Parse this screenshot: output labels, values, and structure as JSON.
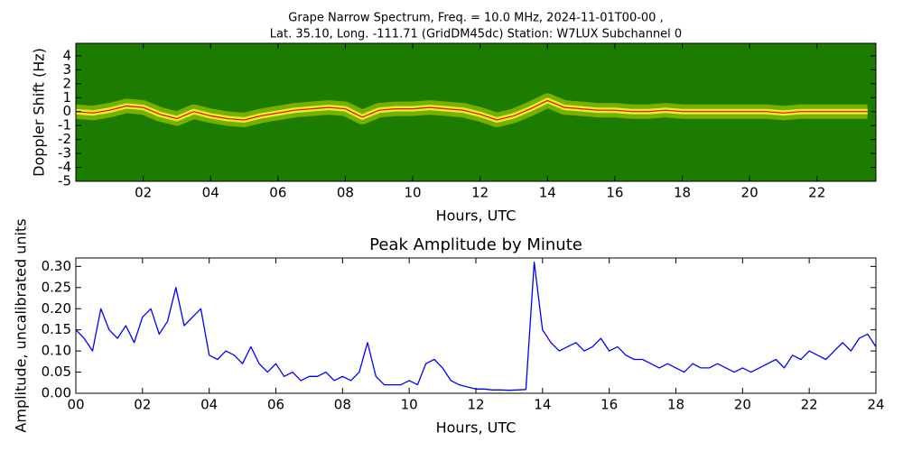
{
  "chart_data": [
    {
      "type": "spectrogram",
      "title": [
        "Grape Narrow Spectrum, Freq. = 10.0 MHz, 2024-11-01T00-00 ,",
        "Lat.  35.10, Long. -111.71 (GridDM45dc) Station: W7LUX Subchannel 0"
      ],
      "xlabel": "Hours, UTC",
      "ylabel": "Doppler Shift (Hz)",
      "xlim": [
        0,
        23.75
      ],
      "ylim": [
        -5,
        4.9
      ],
      "xticks": [
        {
          "value": 2,
          "label": "02"
        },
        {
          "value": 4,
          "label": "04"
        },
        {
          "value": 6,
          "label": "06"
        },
        {
          "value": 8,
          "label": "08"
        },
        10,
        12,
        14,
        16,
        18,
        20,
        22
      ],
      "yticks": [
        -5,
        -4,
        -3,
        -2,
        -1,
        0,
        1,
        2,
        3,
        4
      ],
      "background": "#1c7c00",
      "series": [
        {
          "color": "#ff0000",
          "x": [
            0,
            0.5,
            1,
            1.5,
            2,
            2.5,
            3,
            3.5,
            4,
            4.5,
            5,
            5.5,
            6,
            6.5,
            7,
            7.5,
            8,
            8.5,
            9,
            9.5,
            10,
            10.5,
            11,
            11.5,
            12,
            12.5,
            13,
            13.5,
            14,
            14.5,
            15,
            15.5,
            16,
            16.5,
            17,
            17.5,
            18,
            18.5,
            19,
            19.5,
            20,
            20.5,
            21,
            21.5,
            22,
            22.5,
            23,
            23.5
          ],
          "values": [
            0,
            -0.1,
            0.1,
            0.4,
            0.3,
            -0.2,
            -0.5,
            0,
            -0.3,
            -0.5,
            -0.6,
            -0.3,
            -0.1,
            0.1,
            0.2,
            0.3,
            0.2,
            -0.4,
            0.1,
            0.2,
            0.2,
            0.3,
            0.2,
            0.1,
            -0.2,
            -0.6,
            -0.3,
            0.2,
            0.8,
            0.3,
            0.2,
            0.1,
            0.1,
            0,
            0,
            0.1,
            0,
            0,
            0,
            0,
            0,
            0,
            -0.1,
            0,
            0,
            0,
            0,
            0
          ]
        }
      ]
    },
    {
      "type": "line",
      "title": "Peak Amplitude by Minute",
      "xlabel": "Hours, UTC",
      "ylabel": "Amplitude, uncalibrated units",
      "xlim": [
        0,
        24
      ],
      "ylim": [
        0,
        0.32
      ],
      "xticks": [
        {
          "value": 0,
          "label": "00"
        },
        {
          "value": 2,
          "label": "02"
        },
        {
          "value": 4,
          "label": "04"
        },
        {
          "value": 6,
          "label": "06"
        },
        {
          "value": 8,
          "label": "08"
        },
        10,
        12,
        14,
        16,
        18,
        20,
        22,
        24
      ],
      "yticks": [
        {
          "value": 0,
          "label": "0.00"
        },
        {
          "value": 0.05,
          "label": "0.05"
        },
        {
          "value": 0.1,
          "label": "0.10"
        },
        {
          "value": 0.15,
          "label": "0.15"
        },
        {
          "value": 0.2,
          "label": "0.20"
        },
        {
          "value": 0.25,
          "label": "0.25"
        },
        {
          "value": 0.3,
          "label": "0.30"
        }
      ],
      "series": [
        {
          "color": "#0000ff",
          "x": [
            0,
            0.25,
            0.5,
            0.75,
            1,
            1.25,
            1.5,
            1.75,
            2,
            2.25,
            2.5,
            2.75,
            3,
            3.25,
            3.5,
            3.75,
            4,
            4.25,
            4.5,
            4.75,
            5,
            5.25,
            5.5,
            5.75,
            6,
            6.25,
            6.5,
            6.75,
            7,
            7.25,
            7.5,
            7.75,
            8,
            8.25,
            8.5,
            8.75,
            9,
            9.25,
            9.5,
            9.75,
            10,
            10.25,
            10.5,
            10.75,
            11,
            11.25,
            11.5,
            11.75,
            12,
            12.25,
            12.5,
            12.75,
            13,
            13.25,
            13.5,
            13.75,
            14,
            14.25,
            14.5,
            14.75,
            15,
            15.25,
            15.5,
            15.75,
            16,
            16.25,
            16.5,
            16.75,
            17,
            17.25,
            17.5,
            17.75,
            18,
            18.25,
            18.5,
            18.75,
            19,
            19.25,
            19.5,
            19.75,
            20,
            20.25,
            20.5,
            20.75,
            21,
            21.25,
            21.5,
            21.75,
            22,
            22.25,
            22.5,
            22.75,
            23,
            23.25,
            23.5,
            23.75,
            24
          ],
          "values": [
            0.15,
            0.13,
            0.1,
            0.2,
            0.15,
            0.13,
            0.16,
            0.12,
            0.18,
            0.2,
            0.14,
            0.17,
            0.25,
            0.16,
            0.18,
            0.2,
            0.09,
            0.08,
            0.1,
            0.09,
            0.07,
            0.11,
            0.07,
            0.05,
            0.07,
            0.04,
            0.05,
            0.03,
            0.04,
            0.04,
            0.05,
            0.03,
            0.04,
            0.03,
            0.05,
            0.12,
            0.04,
            0.02,
            0.02,
            0.02,
            0.03,
            0.02,
            0.07,
            0.08,
            0.06,
            0.03,
            0.02,
            0.015,
            0.01,
            0.01,
            0.008,
            0.008,
            0.007,
            0.008,
            0.009,
            0.31,
            0.15,
            0.12,
            0.1,
            0.11,
            0.12,
            0.1,
            0.11,
            0.13,
            0.1,
            0.11,
            0.09,
            0.08,
            0.08,
            0.07,
            0.06,
            0.07,
            0.06,
            0.05,
            0.07,
            0.06,
            0.06,
            0.07,
            0.06,
            0.05,
            0.06,
            0.05,
            0.06,
            0.07,
            0.08,
            0.06,
            0.09,
            0.08,
            0.1,
            0.09,
            0.08,
            0.1,
            0.12,
            0.1,
            0.13,
            0.14,
            0.11
          ]
        }
      ]
    }
  ]
}
